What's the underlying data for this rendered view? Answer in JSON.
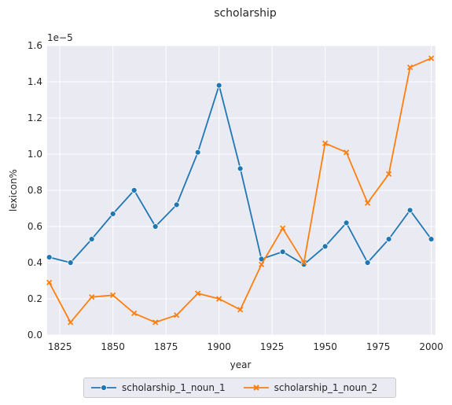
{
  "chart_data": {
    "type": "line",
    "title": "scholarship",
    "xlabel": "year",
    "ylabel": "lexicon%",
    "y_scale_label": "1e−5",
    "xlim": [
      1819,
      2002
    ],
    "ylim": [
      0,
      1.6
    ],
    "x_ticks": [
      1825,
      1850,
      1875,
      1900,
      1925,
      1950,
      1975,
      2000
    ],
    "y_ticks": [
      0.0,
      0.2,
      0.4,
      0.6,
      0.8,
      1.0,
      1.2,
      1.4,
      1.6
    ],
    "grid": true,
    "legend_placement": "bottom-center",
    "x": [
      1820,
      1830,
      1840,
      1850,
      1860,
      1870,
      1880,
      1890,
      1900,
      1910,
      1920,
      1930,
      1940,
      1950,
      1960,
      1970,
      1980,
      1990,
      2000
    ],
    "series": [
      {
        "name": "scholarship_1_noun_1",
        "color": "#1f77b4",
        "marker": "circle",
        "values": [
          0.43,
          0.4,
          0.53,
          0.67,
          0.8,
          0.6,
          0.72,
          1.01,
          1.38,
          0.92,
          0.42,
          0.46,
          0.39,
          0.49,
          0.62,
          0.4,
          0.53,
          0.69,
          0.53
        ]
      },
      {
        "name": "scholarship_1_noun_2",
        "color": "#ff7f0e",
        "marker": "x",
        "values": [
          0.29,
          0.07,
          0.21,
          0.22,
          0.12,
          0.07,
          0.11,
          0.23,
          0.2,
          0.14,
          0.39,
          0.59,
          0.4,
          1.06,
          1.01,
          0.73,
          0.89,
          1.48,
          1.53
        ]
      }
    ]
  }
}
